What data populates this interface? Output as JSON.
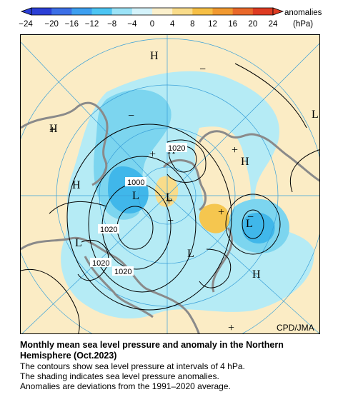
{
  "colorbar": {
    "ticks": [
      "−24",
      "−20",
      "−16",
      "−12",
      "−8",
      "−4",
      "0",
      "4",
      "8",
      "12",
      "16",
      "20",
      "24"
    ],
    "label_line1": "anomalies",
    "label_line2": "(hPa)",
    "colors": [
      "#2b3fd6",
      "#3c6fe6",
      "#3d9ff0",
      "#4cc5f3",
      "#9be3f7",
      "#d4f3fb",
      "#fbf0cc",
      "#f9dc8a",
      "#f6bf45",
      "#f19930",
      "#e9682a",
      "#de3b22"
    ]
  },
  "map": {
    "high_marker": "H",
    "low_marker": "L",
    "plus_marker": "+",
    "minus_marker": "−",
    "contour_labels": [
      "1000",
      "1020",
      "1020",
      "1020",
      "1020"
    ],
    "credit": "CPD/JMA",
    "colors": {
      "positive_fill": "#fbecc5",
      "negative_light": "#b5ebf5",
      "negative_mid": "#7cd5ef",
      "negative_strong": "#40b7ea",
      "positive_strong": "#f5c64f",
      "land": "#8a8a8a",
      "grid": "#3aa0d8"
    }
  },
  "caption": {
    "title_line1": "Monthly mean sea level pressure and anomaly in the Northern",
    "title_line2": "Hemisphere (Oct.2023)",
    "line1": "The contours show sea level pressure at intervals of 4 hPa.",
    "line2": "The shading indicates sea level pressure anomalies.",
    "line3": "Anomalies are deviations from the 1991–2020 average."
  }
}
